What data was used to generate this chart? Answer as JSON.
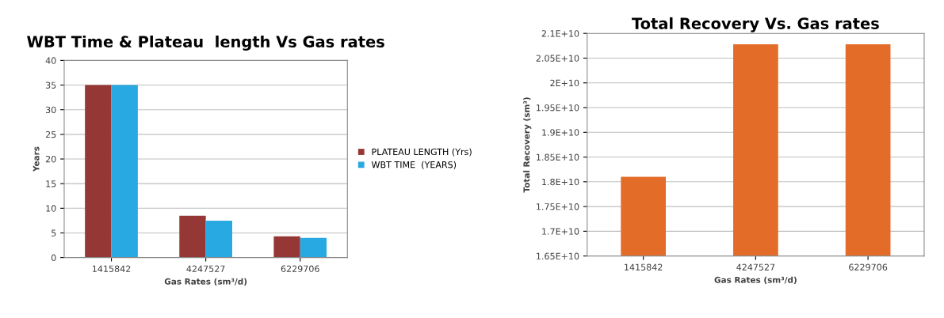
{
  "chart_data": [
    {
      "type": "bar",
      "title": "WBT Time & Plateau  length Vs Gas rates",
      "xlabel": "Gas Rates (sm³/d)",
      "ylabel": "Years",
      "categories": [
        "1415842",
        "4247527",
        "6229706"
      ],
      "series": [
        {
          "name": "PLATEAU LENGTH (Yrs)",
          "color": "#953735",
          "values": [
            35,
            8.5,
            4.3
          ]
        },
        {
          "name": "WBT TIME  (YEARS)",
          "color": "#29a9e1",
          "values": [
            35,
            7.5,
            4.0
          ]
        }
      ],
      "ylim": [
        0,
        40
      ],
      "yticks": [
        0,
        5,
        10,
        15,
        20,
        25,
        30,
        35,
        40
      ],
      "grid": "y",
      "legend": "right"
    },
    {
      "type": "bar",
      "title": "Total Recovery Vs. Gas rates",
      "xlabel": "Gas Rates (sm³/d)",
      "ylabel": "Total Recovery (sm³)",
      "categories": [
        "1415842",
        "4247527",
        "6229706"
      ],
      "values": [
        18100000000,
        20780000000,
        20780000000
      ],
      "color": "#e36c28",
      "ylim": [
        16500000000,
        21000000000
      ],
      "yticks": [
        {
          "value": 16500000000,
          "label": "1.65E+10"
        },
        {
          "value": 17000000000,
          "label": "1.7E+10"
        },
        {
          "value": 17500000000,
          "label": "1.75E+10"
        },
        {
          "value": 18000000000,
          "label": "1.8E+10"
        },
        {
          "value": 18500000000,
          "label": "1.85E+10"
        },
        {
          "value": 19000000000,
          "label": "1.9E+10"
        },
        {
          "value": 19500000000,
          "label": "1.95E+10"
        },
        {
          "value": 20000000000,
          "label": "2E+10"
        },
        {
          "value": 20500000000,
          "label": "2.05E+10"
        },
        {
          "value": 21000000000,
          "label": "2.1E+10"
        }
      ],
      "grid": "y"
    }
  ]
}
